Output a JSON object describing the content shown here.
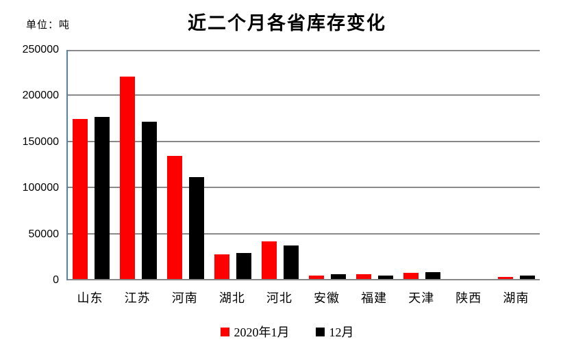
{
  "title": "近二个月各省库存变化",
  "unit_label": "单位：吨",
  "colors": {
    "axis_line": "#4f81bd",
    "gridline": "#898989",
    "series1": "#ff0000",
    "series2": "#000000",
    "background": "#ffffff"
  },
  "chart_data": {
    "type": "bar",
    "title": "近二个月各省库存变化",
    "ylabel": "单位：吨",
    "categories": [
      "山东",
      "江苏",
      "河南",
      "湖北",
      "河北",
      "安徽",
      "福建",
      "天津",
      "陕西",
      "湖南"
    ],
    "series": [
      {
        "name": "2020年1月",
        "color": "#ff0000",
        "values": [
          175000,
          221000,
          135000,
          28000,
          42000,
          5500,
          6500,
          8500,
          0,
          3500
        ]
      },
      {
        "name": "12月",
        "color": "#000000",
        "values": [
          177000,
          172000,
          112000,
          29500,
          38000,
          6500,
          5000,
          9000,
          0,
          5000
        ]
      }
    ],
    "ylim": [
      0,
      250000
    ],
    "yticks": [
      0,
      50000,
      100000,
      150000,
      200000,
      250000
    ],
    "grid": true,
    "legend_position": "bottom"
  }
}
